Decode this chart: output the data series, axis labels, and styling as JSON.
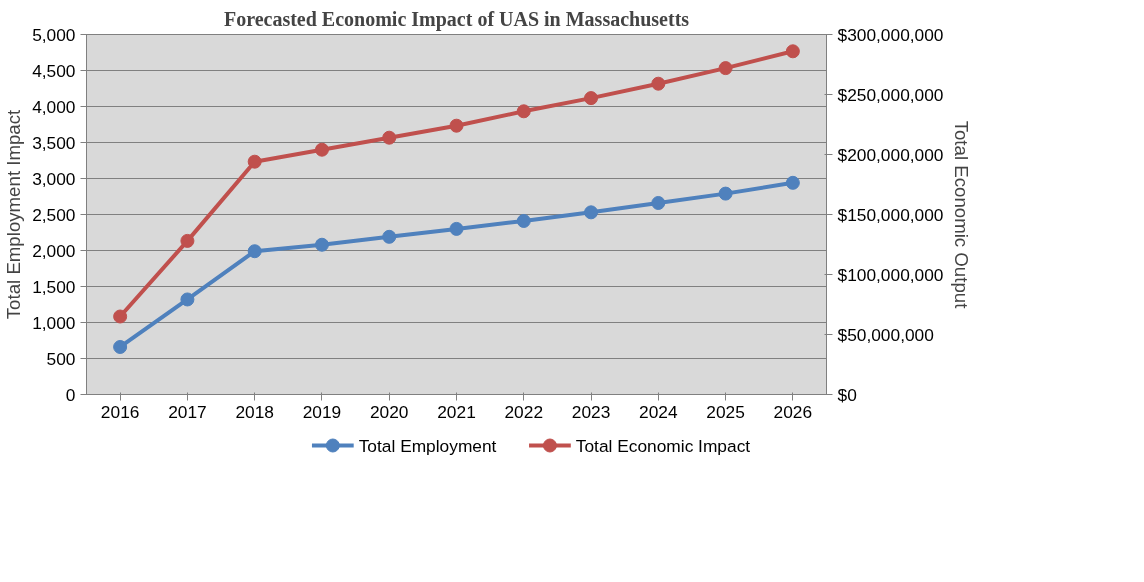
{
  "chart_data": {
    "type": "line",
    "title": "Forecasted Economic Impact of UAS in Massachusetts",
    "ylabel": "Total Employment Impact",
    "y2label": "Total Economic Output",
    "categories": [
      "2016",
      "2017",
      "2018",
      "2019",
      "2020",
      "2021",
      "2022",
      "2023",
      "2024",
      "2025",
      "2026"
    ],
    "series": [
      {
        "name": "Total Employment",
        "color": "#4f81bd",
        "values": [
          660,
          1320,
          1990,
          2080,
          2190,
          2300,
          2410,
          2530,
          2660,
          2790,
          2940
        ]
      },
      {
        "name": "Total Economic Impact",
        "color": "#c0504d",
        "axis": "y2",
        "values": [
          65000000,
          128000000,
          194000000,
          204000000,
          214000000,
          224000000,
          236000000,
          247000000,
          259000000,
          272000000,
          286000000
        ]
      }
    ],
    "ylim": [
      0,
      5000
    ],
    "yticks": [
      0,
      500,
      {
        "value": 1000,
        "label": "1,000"
      },
      {
        "value": 1500,
        "label": "1,500"
      },
      {
        "value": 2000,
        "label": "2,000"
      },
      {
        "value": 2500,
        "label": "2,500"
      },
      {
        "value": 3000,
        "label": "3,000"
      },
      {
        "value": 3500,
        "label": "3,500"
      },
      {
        "value": 4000,
        "label": "4,000"
      },
      {
        "value": 4500,
        "label": "4,500"
      },
      {
        "value": 5000,
        "label": "5,000"
      }
    ],
    "y2lim": [
      0,
      300000000
    ],
    "y2ticks": [
      {
        "value": 0,
        "label": "$0"
      },
      {
        "value": 50000000,
        "label": "$50,000,000"
      },
      {
        "value": 100000000,
        "label": "$100,000,000"
      },
      {
        "value": 150000000,
        "label": "$150,000,000"
      },
      {
        "value": 200000000,
        "label": "$200,000,000"
      },
      {
        "value": 250000000,
        "label": "$250,000,000"
      },
      {
        "value": 300000000,
        "label": "$300,000,000"
      }
    ],
    "grid": "y",
    "legend": "bottom",
    "marker": "circle",
    "line_style": "solid"
  }
}
